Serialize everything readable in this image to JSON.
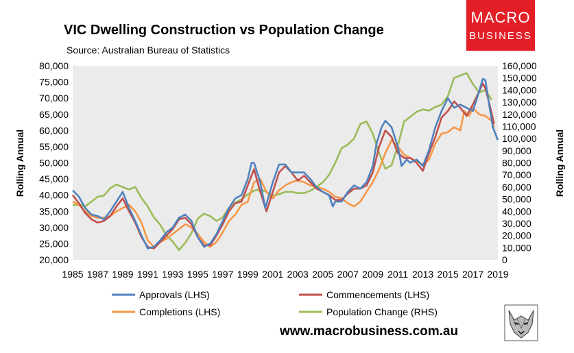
{
  "title": "VIC Dwelling Construction vs Population Change",
  "subtitle": "Source: Australian Bureau of Statistics",
  "website": "www.macrobusiness.com.au",
  "logo": {
    "line1": "MACRO",
    "line2": "BUSINESS",
    "color": "#e31e26"
  },
  "mascot_icon": "wolf-head-icon",
  "chart_data": {
    "type": "line",
    "xlabel": "",
    "ylabel_left": "Rolling Annual",
    "ylabel_right": "Rolling Annual",
    "xlim": [
      1985,
      2019
    ],
    "ylim_left": [
      20000,
      80000
    ],
    "ylim_right": [
      0,
      160000
    ],
    "x_ticks": [
      "1985",
      "1987",
      "1989",
      "1991",
      "1993",
      "1995",
      "1997",
      "1999",
      "2001",
      "2003",
      "2005",
      "2007",
      "2009",
      "2011",
      "2013",
      "2015",
      "2017",
      "2019"
    ],
    "y_ticks_left": [
      "20,000",
      "25,000",
      "30,000",
      "35,000",
      "40,000",
      "45,000",
      "50,000",
      "55,000",
      "60,000",
      "65,000",
      "70,000",
      "75,000",
      "80,000"
    ],
    "y_ticks_right": [
      "0",
      "10,000",
      "20,000",
      "30,000",
      "40,000",
      "50,000",
      "60,000",
      "70,000",
      "80,000",
      "90,000",
      "100,000",
      "110,000",
      "120,000",
      "130,000",
      "140,000",
      "150,000",
      "160,000"
    ],
    "plot_background": "#ebebeb",
    "legend": "bottom",
    "series": [
      {
        "name": "Approvals (LHS)",
        "axis": "left",
        "color": "#4f81bd",
        "points": [
          [
            1985,
            41500
          ],
          [
            1985.5,
            39500
          ],
          [
            1986,
            36000
          ],
          [
            1986.5,
            34000
          ],
          [
            1987,
            33500
          ],
          [
            1987.5,
            32500
          ],
          [
            1988,
            35000
          ],
          [
            1988.5,
            38000
          ],
          [
            1989,
            41000
          ],
          [
            1989.5,
            36000
          ],
          [
            1990,
            32000
          ],
          [
            1990.5,
            27500
          ],
          [
            1991,
            23500
          ],
          [
            1991.5,
            24000
          ],
          [
            1992,
            26000
          ],
          [
            1992.5,
            28500
          ],
          [
            1993,
            30000
          ],
          [
            1993.5,
            33000
          ],
          [
            1994,
            34000
          ],
          [
            1994.5,
            32000
          ],
          [
            1995,
            27000
          ],
          [
            1995.5,
            24000
          ],
          [
            1996,
            25000
          ],
          [
            1996.5,
            28000
          ],
          [
            1997,
            32000
          ],
          [
            1997.5,
            36000
          ],
          [
            1998,
            39000
          ],
          [
            1998.5,
            40000
          ],
          [
            1999,
            45000
          ],
          [
            1999.3,
            50000
          ],
          [
            1999.5,
            50000
          ],
          [
            2000,
            44000
          ],
          [
            2000.4,
            36000
          ],
          [
            2001,
            44000
          ],
          [
            2001.5,
            49500
          ],
          [
            2002,
            49500
          ],
          [
            2002.5,
            47000
          ],
          [
            2003,
            47000
          ],
          [
            2003.5,
            47000
          ],
          [
            2004,
            45000
          ],
          [
            2004.5,
            42500
          ],
          [
            2005,
            41000
          ],
          [
            2005.5,
            40000
          ],
          [
            2005.8,
            36500
          ],
          [
            2006,
            38000
          ],
          [
            2006.5,
            38000
          ],
          [
            2007,
            41000
          ],
          [
            2007.5,
            43000
          ],
          [
            2008,
            42000
          ],
          [
            2008.5,
            44000
          ],
          [
            2009,
            49000
          ],
          [
            2009.3,
            56000
          ],
          [
            2009.7,
            61000
          ],
          [
            2010,
            63000
          ],
          [
            2010.5,
            61000
          ],
          [
            2011,
            55000
          ],
          [
            2011.3,
            49000
          ],
          [
            2011.7,
            51000
          ],
          [
            2012,
            50000
          ],
          [
            2012.5,
            51000
          ],
          [
            2013,
            49000
          ],
          [
            2013.5,
            54000
          ],
          [
            2014,
            61000
          ],
          [
            2014.5,
            66000
          ],
          [
            2015,
            70000
          ],
          [
            2015.5,
            67000
          ],
          [
            2016,
            68000
          ],
          [
            2016.5,
            67000
          ],
          [
            2017,
            66000
          ],
          [
            2017.5,
            72000
          ],
          [
            2017.8,
            76000
          ],
          [
            2018,
            75500
          ],
          [
            2018.3,
            68000
          ],
          [
            2018.6,
            61000
          ],
          [
            2019,
            57000
          ]
        ]
      },
      {
        "name": "Commencements (LHS)",
        "axis": "left",
        "color": "#c0504d",
        "points": [
          [
            1985,
            40000
          ],
          [
            1985.5,
            37500
          ],
          [
            1986,
            34500
          ],
          [
            1986.5,
            32500
          ],
          [
            1987,
            31500
          ],
          [
            1987.5,
            32000
          ],
          [
            1988,
            33500
          ],
          [
            1988.5,
            36500
          ],
          [
            1989,
            39000
          ],
          [
            1989.5,
            35000
          ],
          [
            1990,
            31500
          ],
          [
            1990.5,
            27000
          ],
          [
            1991,
            24000
          ],
          [
            1991.5,
            23500
          ],
          [
            1992,
            25500
          ],
          [
            1992.5,
            27500
          ],
          [
            1993,
            29500
          ],
          [
            1993.5,
            32500
          ],
          [
            1994,
            33000
          ],
          [
            1994.5,
            31000
          ],
          [
            1995,
            27000
          ],
          [
            1995.5,
            24500
          ],
          [
            1996,
            24500
          ],
          [
            1996.5,
            27500
          ],
          [
            1997,
            31000
          ],
          [
            1997.5,
            35000
          ],
          [
            1998,
            37500
          ],
          [
            1998.5,
            38000
          ],
          [
            1999,
            43000
          ],
          [
            1999.5,
            48000
          ],
          [
            2000,
            41000
          ],
          [
            2000.5,
            35000
          ],
          [
            2001,
            41000
          ],
          [
            2001.5,
            47000
          ],
          [
            2002,
            49000
          ],
          [
            2002.5,
            47000
          ],
          [
            2003,
            44500
          ],
          [
            2003.5,
            46000
          ],
          [
            2004,
            44000
          ],
          [
            2004.5,
            42000
          ],
          [
            2005,
            41000
          ],
          [
            2005.5,
            40000
          ],
          [
            2006,
            38500
          ],
          [
            2006.5,
            38500
          ],
          [
            2007,
            40500
          ],
          [
            2007.5,
            42000
          ],
          [
            2008,
            42000
          ],
          [
            2008.5,
            43000
          ],
          [
            2009,
            47000
          ],
          [
            2009.5,
            55000
          ],
          [
            2010,
            60000
          ],
          [
            2010.5,
            58000
          ],
          [
            2011,
            53000
          ],
          [
            2011.5,
            51500
          ],
          [
            2012,
            51500
          ],
          [
            2012.5,
            50000
          ],
          [
            2013,
            47500
          ],
          [
            2013.5,
            53000
          ],
          [
            2014,
            58000
          ],
          [
            2014.5,
            64000
          ],
          [
            2015,
            66000
          ],
          [
            2015.5,
            69000
          ],
          [
            2016,
            67000
          ],
          [
            2016.5,
            64500
          ],
          [
            2017,
            68000
          ],
          [
            2017.5,
            72000
          ],
          [
            2017.8,
            74500
          ],
          [
            2018,
            73000
          ],
          [
            2018.4,
            67000
          ],
          [
            2018.7,
            62000
          ]
        ]
      },
      {
        "name": "Completions (LHS)",
        "axis": "left",
        "color": "#f79646",
        "points": [
          [
            1985,
            38000
          ],
          [
            1985.5,
            37000
          ],
          [
            1986,
            35000
          ],
          [
            1986.5,
            33500
          ],
          [
            1987,
            33000
          ],
          [
            1987.5,
            33000
          ],
          [
            1988,
            33500
          ],
          [
            1988.5,
            35000
          ],
          [
            1989,
            36000
          ],
          [
            1989.5,
            37000
          ],
          [
            1990,
            35000
          ],
          [
            1990.5,
            31500
          ],
          [
            1991,
            26000
          ],
          [
            1991.5,
            24000
          ],
          [
            1992,
            25500
          ],
          [
            1992.5,
            26500
          ],
          [
            1993,
            28000
          ],
          [
            1993.5,
            29500
          ],
          [
            1994,
            31000
          ],
          [
            1994.5,
            30000
          ],
          [
            1995,
            28000
          ],
          [
            1995.5,
            25500
          ],
          [
            1996,
            24000
          ],
          [
            1996.5,
            25500
          ],
          [
            1997,
            28500
          ],
          [
            1997.5,
            32000
          ],
          [
            1998,
            34000
          ],
          [
            1998.5,
            37000
          ],
          [
            1999,
            38000
          ],
          [
            1999.5,
            44000
          ],
          [
            2000,
            45000
          ],
          [
            2000.5,
            41000
          ],
          [
            2001,
            39000
          ],
          [
            2001.5,
            41500
          ],
          [
            2002,
            43000
          ],
          [
            2002.5,
            44000
          ],
          [
            2003,
            44500
          ],
          [
            2003.5,
            44000
          ],
          [
            2004,
            43000
          ],
          [
            2004.5,
            42500
          ],
          [
            2005,
            42000
          ],
          [
            2005.5,
            41000
          ],
          [
            2006,
            39500
          ],
          [
            2006.5,
            39000
          ],
          [
            2007,
            37500
          ],
          [
            2007.5,
            36500
          ],
          [
            2008,
            38000
          ],
          [
            2008.5,
            41000
          ],
          [
            2009,
            44000
          ],
          [
            2009.5,
            48000
          ],
          [
            2010,
            53000
          ],
          [
            2010.5,
            57000
          ],
          [
            2011,
            55000
          ],
          [
            2011.5,
            52500
          ],
          [
            2012,
            51500
          ],
          [
            2012.5,
            50500
          ],
          [
            2013,
            49500
          ],
          [
            2013.5,
            51000
          ],
          [
            2014,
            56000
          ],
          [
            2014.5,
            59000
          ],
          [
            2015,
            59500
          ],
          [
            2015.5,
            61000
          ],
          [
            2016,
            60000
          ],
          [
            2016.3,
            66000
          ],
          [
            2016.7,
            64500
          ],
          [
            2017,
            67000
          ],
          [
            2017.5,
            65000
          ],
          [
            2018,
            64500
          ],
          [
            2018.5,
            63000
          ],
          [
            2018.7,
            61000
          ]
        ]
      },
      {
        "name": "Population Change (RHS)",
        "axis": "right",
        "color": "#9bbb59",
        "points": [
          [
            1985,
            45000
          ],
          [
            1985.5,
            45500
          ],
          [
            1986,
            44000
          ],
          [
            1986.5,
            48000
          ],
          [
            1987,
            52000
          ],
          [
            1987.5,
            53000
          ],
          [
            1988,
            59000
          ],
          [
            1988.5,
            62000
          ],
          [
            1989,
            60000
          ],
          [
            1989.5,
            58000
          ],
          [
            1990,
            60000
          ],
          [
            1990.5,
            51000
          ],
          [
            1991,
            44000
          ],
          [
            1991.5,
            35000
          ],
          [
            1992,
            29000
          ],
          [
            1992.5,
            20000
          ],
          [
            1993,
            15000
          ],
          [
            1993.5,
            8000
          ],
          [
            1994,
            14000
          ],
          [
            1994.5,
            22000
          ],
          [
            1995,
            34000
          ],
          [
            1995.5,
            38000
          ],
          [
            1996,
            36000
          ],
          [
            1996.5,
            32000
          ],
          [
            1997,
            35000
          ],
          [
            1997.5,
            43000
          ],
          [
            1998,
            47000
          ],
          [
            1998.5,
            50000
          ],
          [
            1999,
            54000
          ],
          [
            1999.5,
            57000
          ],
          [
            2000,
            58000
          ],
          [
            2000.5,
            56000
          ],
          [
            2001,
            53000
          ],
          [
            2001.5,
            54000
          ],
          [
            2002,
            56000
          ],
          [
            2002.5,
            56000
          ],
          [
            2003,
            55000
          ],
          [
            2003.5,
            55000
          ],
          [
            2004,
            57000
          ],
          [
            2004.5,
            60000
          ],
          [
            2005,
            64000
          ],
          [
            2005.5,
            70000
          ],
          [
            2006,
            80000
          ],
          [
            2006.5,
            92000
          ],
          [
            2007,
            95000
          ],
          [
            2007.5,
            100000
          ],
          [
            2008,
            112000
          ],
          [
            2008.5,
            114000
          ],
          [
            2009,
            104000
          ],
          [
            2009.5,
            88000
          ],
          [
            2010,
            75000
          ],
          [
            2010.5,
            78000
          ],
          [
            2011,
            94000
          ],
          [
            2011.5,
            114000
          ],
          [
            2012,
            118000
          ],
          [
            2012.5,
            122000
          ],
          [
            2013,
            124000
          ],
          [
            2013.5,
            123000
          ],
          [
            2014,
            126000
          ],
          [
            2014.5,
            128000
          ],
          [
            2015,
            135000
          ],
          [
            2015.5,
            150000
          ],
          [
            2016,
            152000
          ],
          [
            2016.5,
            154000
          ],
          [
            2017,
            145000
          ],
          [
            2017.5,
            138000
          ],
          [
            2018,
            140000
          ],
          [
            2018.5,
            132000
          ]
        ]
      }
    ]
  }
}
